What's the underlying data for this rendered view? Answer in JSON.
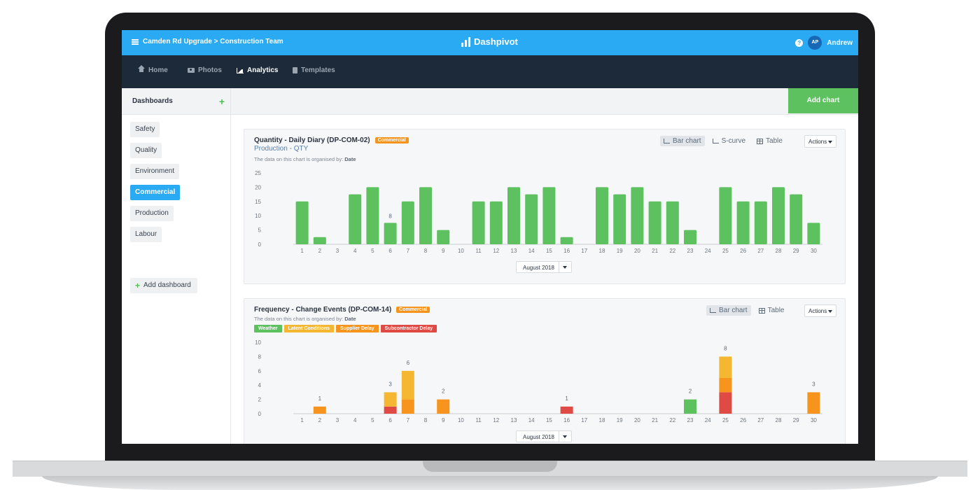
{
  "header": {
    "breadcrumb": "Camden Rd Upgrade > Construction Team",
    "brand": "Dashpivot",
    "user_initials": "AP",
    "user_name": "Andrew"
  },
  "nav": {
    "items": [
      {
        "label": "Home",
        "icon": "home-icon"
      },
      {
        "label": "Photos",
        "icon": "camera-icon"
      },
      {
        "label": "Analytics",
        "icon": "chart-icon",
        "active": true
      },
      {
        "label": "Templates",
        "icon": "file-icon"
      }
    ]
  },
  "sidebar": {
    "title": "Dashboards",
    "items": [
      "Safety",
      "Quality",
      "Environment",
      "Commercial",
      "Production",
      "Labour"
    ],
    "active": "Commercial",
    "add_label": "Add dashboard"
  },
  "toolbar": {
    "add_chart_label": "Add chart"
  },
  "colors": {
    "accent": "#29aaf3",
    "nav": "#1c2a3a",
    "green": "#5cc15e",
    "badge_orange": "#f7941d",
    "weather": "#5cc15e",
    "latent": "#f5b731",
    "supplier": "#f7941d",
    "subcontractor": "#e04a45"
  },
  "chart_cards": [
    {
      "title": "Quantity - Daily Diary (DP-COM-02)",
      "badge": "Commercial",
      "subtitle": "Production - QTY",
      "note_prefix": "The data on this chart is organised by:",
      "note_key": "Date",
      "views": [
        "Bar chart",
        "S-curve",
        "Table"
      ],
      "actions_label": "Actions",
      "month_label": "August 2018"
    },
    {
      "title": "Frequency - Change Events (DP-COM-14)",
      "badge": "Commercial",
      "note_prefix": "The data on this chart is organised by:",
      "note_key": "Date",
      "views": [
        "Bar chart",
        "Table"
      ],
      "actions_label": "Actions",
      "month_label": "August 2018"
    }
  ],
  "chart_data": [
    {
      "type": "bar",
      "categories": [
        "1",
        "2",
        "3",
        "4",
        "5",
        "6",
        "7",
        "8",
        "9",
        "10",
        "11",
        "12",
        "13",
        "14",
        "15",
        "16",
        "17",
        "18",
        "19",
        "20",
        "21",
        "22",
        "23",
        "24",
        "25",
        "26",
        "27",
        "28",
        "29",
        "30"
      ],
      "values": [
        15,
        2.5,
        0,
        17.5,
        20,
        7.5,
        15,
        20,
        5,
        0,
        15,
        15,
        20,
        17.5,
        20,
        2.5,
        0,
        20,
        17.5,
        20,
        15,
        15,
        5,
        0,
        20,
        15,
        15,
        20,
        17.5,
        7.5
      ],
      "data_labels": [
        {
          "index": 5,
          "text": "8"
        }
      ],
      "yticks": [
        0,
        5,
        10,
        15,
        20,
        25
      ],
      "ylim": [
        0,
        25
      ],
      "grid": false
    },
    {
      "type": "bar",
      "stacked": true,
      "categories": [
        "1",
        "2",
        "3",
        "4",
        "5",
        "6",
        "7",
        "8",
        "9",
        "10",
        "11",
        "12",
        "13",
        "14",
        "15",
        "16",
        "17",
        "18",
        "19",
        "20",
        "21",
        "22",
        "23",
        "24",
        "25",
        "26",
        "27",
        "28",
        "29",
        "30"
      ],
      "series": [
        {
          "name": "Weather",
          "values": [
            0,
            0,
            0,
            0,
            0,
            0,
            0,
            0,
            0,
            0,
            0,
            0,
            0,
            0,
            0,
            0,
            0,
            0,
            0,
            0,
            0,
            0,
            2,
            0,
            0,
            0,
            0,
            0,
            0,
            0
          ]
        },
        {
          "name": "Latent Conditions",
          "values": [
            0,
            0,
            0,
            0,
            0,
            2,
            4,
            0,
            0,
            0,
            0,
            0,
            0,
            0,
            0,
            0,
            0,
            0,
            0,
            0,
            0,
            0,
            0,
            0,
            3,
            0,
            0,
            0,
            0,
            0
          ]
        },
        {
          "name": "Supplier Delay",
          "values": [
            0,
            1,
            0,
            0,
            0,
            0,
            2,
            0,
            2,
            0,
            0,
            0,
            0,
            0,
            0,
            0,
            0,
            0,
            0,
            0,
            0,
            0,
            0,
            0,
            2,
            0,
            0,
            0,
            0,
            3
          ]
        },
        {
          "name": "Subcontractor Delay",
          "values": [
            0,
            0,
            0,
            0,
            0,
            1,
            0,
            0,
            0,
            0,
            0,
            0,
            0,
            0,
            0,
            1,
            0,
            0,
            0,
            0,
            0,
            0,
            0,
            0,
            3,
            0,
            0,
            0,
            0,
            0
          ]
        }
      ],
      "totals_labels": [
        {
          "index": 1,
          "text": "1"
        },
        {
          "index": 5,
          "text": "3"
        },
        {
          "index": 6,
          "text": "6"
        },
        {
          "index": 8,
          "text": "2"
        },
        {
          "index": 15,
          "text": "1"
        },
        {
          "index": 22,
          "text": "2"
        },
        {
          "index": 24,
          "text": "8"
        },
        {
          "index": 29,
          "text": "3"
        }
      ],
      "yticks": [
        0,
        2,
        4,
        6,
        8,
        10
      ],
      "ylim": [
        0,
        10
      ],
      "grid": false
    }
  ]
}
